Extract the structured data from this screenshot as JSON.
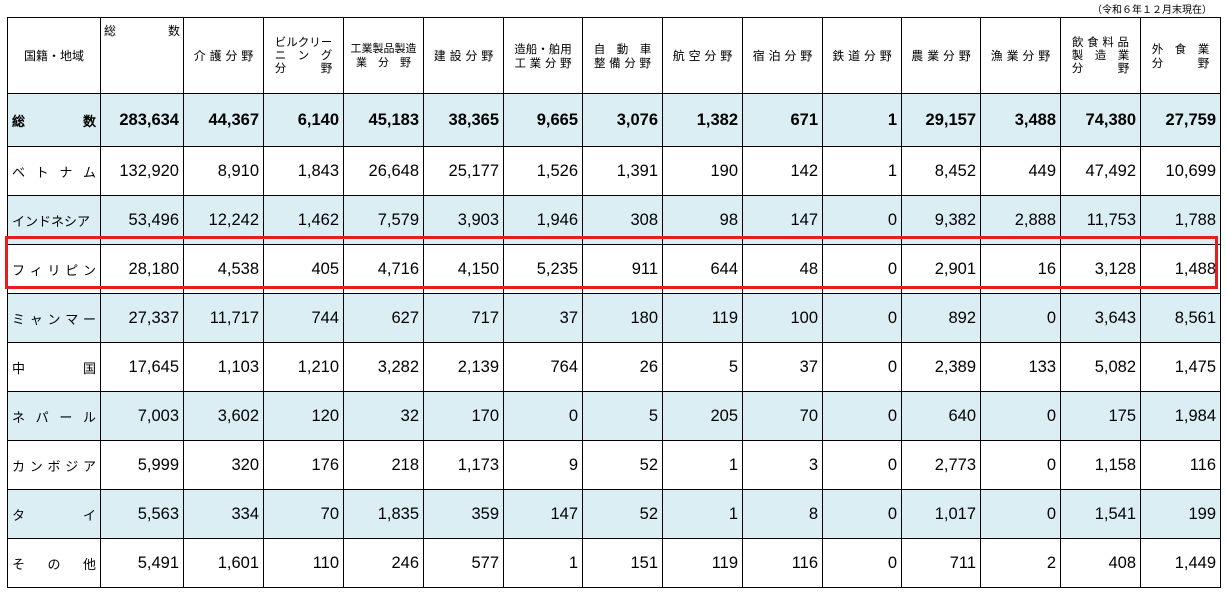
{
  "note": "（令和６年１２月末現在）",
  "header": {
    "region": "国籍・地域",
    "total": [
      "総",
      "数"
    ],
    "care": "介 護 分 野",
    "building_cleaning": [
      "ビルクリー",
      "ニ　ン　グ",
      "分　　　野"
    ],
    "industrial": [
      "工業製品製造",
      "業　分　野"
    ],
    "construction": "建 設 分 野",
    "shipbuilding": [
      "造船・舶用",
      "工 業 分 野"
    ],
    "auto": [
      "自　動　車",
      "整 備 分 野"
    ],
    "aviation": "航 空 分 野",
    "lodging": "宿 泊 分 野",
    "railway": "鉄 道 分 野",
    "agriculture": "農 業 分 野",
    "fishery": "漁 業 分 野",
    "food_mfg": [
      "飲 食 料 品",
      "製　造　業",
      "分　　　野"
    ],
    "food_service": [
      "外　食　業",
      "分　　　野"
    ]
  },
  "rows": [
    {
      "name": [
        "総",
        "数"
      ],
      "values": [
        "283,634",
        "44,367",
        "6,140",
        "45,183",
        "38,365",
        "9,665",
        "3,076",
        "1,382",
        "671",
        "1",
        "29,157",
        "3,488",
        "74,380",
        "27,759"
      ]
    },
    {
      "name": [
        "ベ",
        "ト",
        "ナ",
        "ム"
      ],
      "values": [
        "132,920",
        "8,910",
        "1,843",
        "26,648",
        "25,177",
        "1,526",
        "1,391",
        "190",
        "142",
        "1",
        "8,452",
        "449",
        "47,492",
        "10,699"
      ]
    },
    {
      "name": [
        "インドネシア"
      ],
      "values": [
        "53,496",
        "12,242",
        "1,462",
        "7,579",
        "3,903",
        "1,946",
        "308",
        "98",
        "147",
        "0",
        "9,382",
        "2,888",
        "11,753",
        "1,788"
      ]
    },
    {
      "name": [
        "フ",
        "ィ",
        "リ",
        "ピ",
        "ン"
      ],
      "values": [
        "28,180",
        "4,538",
        "405",
        "4,716",
        "4,150",
        "5,235",
        "911",
        "644",
        "48",
        "0",
        "2,901",
        "16",
        "3,128",
        "1,488"
      ]
    },
    {
      "name": [
        "ミ",
        "ャ",
        "ン",
        "マ",
        "ー"
      ],
      "values": [
        "27,337",
        "11,717",
        "744",
        "627",
        "717",
        "37",
        "180",
        "119",
        "100",
        "0",
        "892",
        "0",
        "3,643",
        "8,561"
      ]
    },
    {
      "name": [
        "中",
        "国"
      ],
      "values": [
        "17,645",
        "1,103",
        "1,210",
        "3,282",
        "2,139",
        "764",
        "26",
        "5",
        "37",
        "0",
        "2,389",
        "133",
        "5,082",
        "1,475"
      ]
    },
    {
      "name": [
        "ネ",
        "パ",
        "ー",
        "ル"
      ],
      "values": [
        "7,003",
        "3,602",
        "120",
        "32",
        "170",
        "0",
        "5",
        "205",
        "70",
        "0",
        "640",
        "0",
        "175",
        "1,984"
      ]
    },
    {
      "name": [
        "カ",
        "ン",
        "ボ",
        "ジ",
        "ア"
      ],
      "values": [
        "5,999",
        "320",
        "176",
        "218",
        "1,173",
        "9",
        "52",
        "1",
        "3",
        "0",
        "2,773",
        "0",
        "1,158",
        "116"
      ]
    },
    {
      "name": [
        "タ",
        "イ"
      ],
      "values": [
        "5,563",
        "334",
        "70",
        "1,835",
        "359",
        "147",
        "52",
        "1",
        "8",
        "0",
        "1,017",
        "0",
        "1,541",
        "199"
      ]
    },
    {
      "name": [
        "そ",
        "の",
        "他"
      ],
      "values": [
        "5,491",
        "1,601",
        "110",
        "246",
        "577",
        "1",
        "151",
        "119",
        "116",
        "0",
        "711",
        "2",
        "408",
        "1,449"
      ]
    }
  ],
  "highlight_color": "#e02020",
  "shade_color": "#dbeef3"
}
